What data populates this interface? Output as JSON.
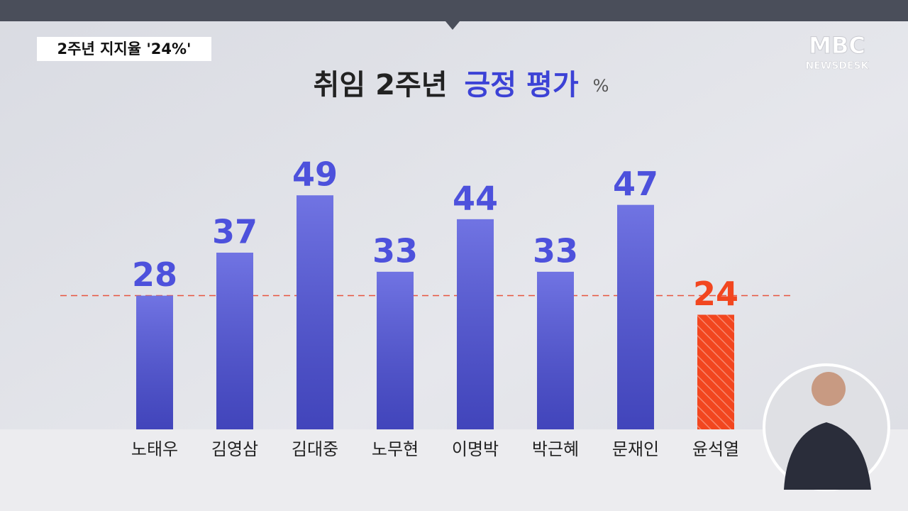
{
  "caption": "2주년 지지율 '24%'",
  "logo": {
    "brand": "MBC",
    "program": "NEWSDESK"
  },
  "chart_data": {
    "type": "bar",
    "title": "취임 2주년",
    "title_highlight": "긍정 평가",
    "unit": "%",
    "categories": [
      "노태우",
      "김영삼",
      "김대중",
      "노무현",
      "이명박",
      "박근혜",
      "문재인",
      "윤석열"
    ],
    "values": [
      28,
      37,
      49,
      33,
      44,
      33,
      47,
      24
    ],
    "colors": [
      "#4d51dc",
      "#4d51dc",
      "#4d51dc",
      "#4d51dc",
      "#4d51dc",
      "#4d51dc",
      "#4d51dc",
      "#f2461f"
    ],
    "reference_line": 28
  }
}
